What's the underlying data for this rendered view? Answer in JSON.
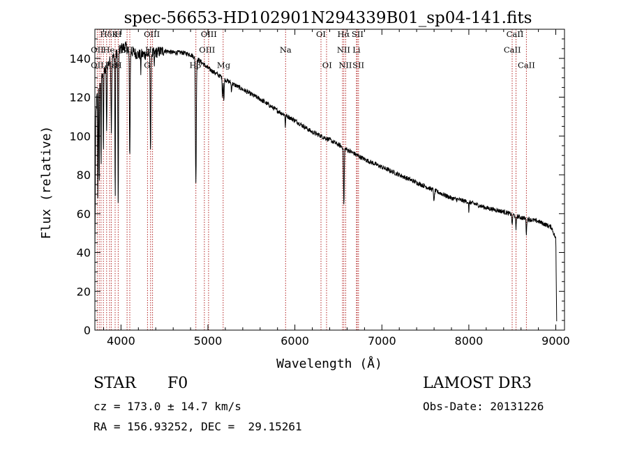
{
  "chart_data": {
    "type": "line",
    "title": "spec-56653-HD102901N294339B01_sp04-141.fits",
    "xlabel": "Wavelength (Å)",
    "ylabel": "Flux (relative)",
    "xlim": [
      3700,
      9100
    ],
    "ylim": [
      0,
      155
    ],
    "xticks": [
      4000,
      5000,
      6000,
      7000,
      8000,
      9000
    ],
    "yticks": [
      0,
      20,
      40,
      60,
      80,
      100,
      120,
      140
    ],
    "continuum": [
      [
        3700,
        40
      ],
      [
        3710,
        110
      ],
      [
        3730,
        125
      ],
      [
        3760,
        128
      ],
      [
        3800,
        132
      ],
      [
        3850,
        137
      ],
      [
        3900,
        140
      ],
      [
        3950,
        142
      ],
      [
        4000,
        145
      ],
      [
        4050,
        146
      ],
      [
        4100,
        144
      ],
      [
        4150,
        143
      ],
      [
        4200,
        142
      ],
      [
        4250,
        142
      ],
      [
        4300,
        142
      ],
      [
        4400,
        143
      ],
      [
        4500,
        144
      ],
      [
        4600,
        143
      ],
      [
        4700,
        143
      ],
      [
        4800,
        142
      ],
      [
        4900,
        139
      ],
      [
        5000,
        135
      ],
      [
        5100,
        132
      ],
      [
        5200,
        129
      ],
      [
        5400,
        124
      ],
      [
        5600,
        119
      ],
      [
        5800,
        113
      ],
      [
        6000,
        108
      ],
      [
        6200,
        102
      ],
      [
        6400,
        98
      ],
      [
        6600,
        93
      ],
      [
        6800,
        88
      ],
      [
        7000,
        84
      ],
      [
        7200,
        80
      ],
      [
        7400,
        76
      ],
      [
        7600,
        72
      ],
      [
        7800,
        68
      ],
      [
        8000,
        66
      ],
      [
        8200,
        63
      ],
      [
        8400,
        61
      ],
      [
        8600,
        58
      ],
      [
        8800,
        56
      ],
      [
        8950,
        53
      ],
      [
        9000,
        47
      ],
      [
        9010,
        5
      ]
    ],
    "absorption_lines": [
      {
        "w": 3734,
        "depth": 60,
        "width": 4
      },
      {
        "w": 3750,
        "depth": 55,
        "width": 4
      },
      {
        "w": 3771,
        "depth": 45,
        "width": 4
      },
      {
        "w": 3798,
        "depth": 40,
        "width": 4
      },
      {
        "w": 3835,
        "depth": 35,
        "width": 5
      },
      {
        "w": 3889,
        "depth": 35,
        "width": 6
      },
      {
        "w": 3933,
        "depth": 78,
        "width": 4
      },
      {
        "w": 3968,
        "depth": 80,
        "width": 5
      },
      {
        "w": 4101,
        "depth": 55,
        "width": 6
      },
      {
        "w": 4227,
        "depth": 10,
        "width": 3
      },
      {
        "w": 4340,
        "depth": 50,
        "width": 6
      },
      {
        "w": 4384,
        "depth": 8,
        "width": 4
      },
      {
        "w": 4861,
        "depth": 65,
        "width": 7
      },
      {
        "w": 5167,
        "depth": 10,
        "width": 5
      },
      {
        "w": 5183,
        "depth": 12,
        "width": 5
      },
      {
        "w": 5270,
        "depth": 5,
        "width": 4
      },
      {
        "w": 5890,
        "depth": 6,
        "width": 4
      },
      {
        "w": 6563,
        "depth": 30,
        "width": 6
      },
      {
        "w": 7600,
        "depth": 6,
        "width": 6
      },
      {
        "w": 8000,
        "depth": 7,
        "width": 3
      },
      {
        "w": 8498,
        "depth": 6,
        "width": 5
      },
      {
        "w": 8542,
        "depth": 8,
        "width": 5
      },
      {
        "w": 8662,
        "depth": 8,
        "width": 5
      }
    ],
    "reference_lines": [
      3727,
      3750,
      3771,
      3798,
      3835,
      3869,
      3889,
      3933,
      3968,
      4070,
      4101,
      4305,
      4340,
      4363,
      4861,
      4959,
      5007,
      5175,
      5893,
      6300,
      6364,
      6548,
      6563,
      6584,
      6708,
      6716,
      6731,
      8498,
      8542,
      8662
    ],
    "line_labels": [
      {
        "text": "Hδ",
        "w": 3828,
        "y": 151
      },
      {
        "text": "K",
        "w": 3930,
        "y": 151
      },
      {
        "text": "H",
        "w": 3968,
        "y": 151
      },
      {
        "text": "OII",
        "w": 3727,
        "y": 143
      },
      {
        "text": "He",
        "w": 3860,
        "y": 143
      },
      {
        "text": "SII",
        "w": 4070,
        "y": 143
      },
      {
        "text": "OII",
        "w": 3727,
        "y": 135
      },
      {
        "text": "Hε",
        "w": 3880,
        "y": 135
      },
      {
        "text": "H",
        "w": 3970,
        "y": 135
      },
      {
        "text": "Hγ",
        "w": 4345,
        "y": 143
      },
      {
        "text": "OIII",
        "w": 4355,
        "y": 151
      },
      {
        "text": "G",
        "w": 4300,
        "y": 135
      },
      {
        "text": "Hβ",
        "w": 4855,
        "y": 135
      },
      {
        "text": "OIII",
        "w": 5010,
        "y": 151
      },
      {
        "text": "OIII",
        "w": 4990,
        "y": 143
      },
      {
        "text": "Mg",
        "w": 5180,
        "y": 135
      },
      {
        "text": "Na",
        "w": 5893,
        "y": 143
      },
      {
        "text": "OI",
        "w": 6300,
        "y": 151
      },
      {
        "text": "OI",
        "w": 6370,
        "y": 135
      },
      {
        "text": "Hα",
        "w": 6560,
        "y": 151
      },
      {
        "text": "NII",
        "w": 6560,
        "y": 143
      },
      {
        "text": "NII",
        "w": 6580,
        "y": 135
      },
      {
        "text": "SII",
        "w": 6720,
        "y": 151
      },
      {
        "text": "Li",
        "w": 6708,
        "y": 143
      },
      {
        "text": "SII",
        "w": 6730,
        "y": 135
      },
      {
        "text": "CaII",
        "w": 8530,
        "y": 151
      },
      {
        "text": "CaII",
        "w": 8500,
        "y": 143
      },
      {
        "text": "CaII",
        "w": 8662,
        "y": 135
      }
    ],
    "grid": false,
    "line_color": "#000000",
    "reference_line_color": "#b22222"
  },
  "info": {
    "object_class": "STAR",
    "subclass": "F0",
    "survey": "LAMOST DR3",
    "redshift": "cz = 173.0 ± 14.7 km/s",
    "obs_date": "Obs-Date: 20131226",
    "coords": "RA = 156.93252, DEC =  29.15261"
  }
}
